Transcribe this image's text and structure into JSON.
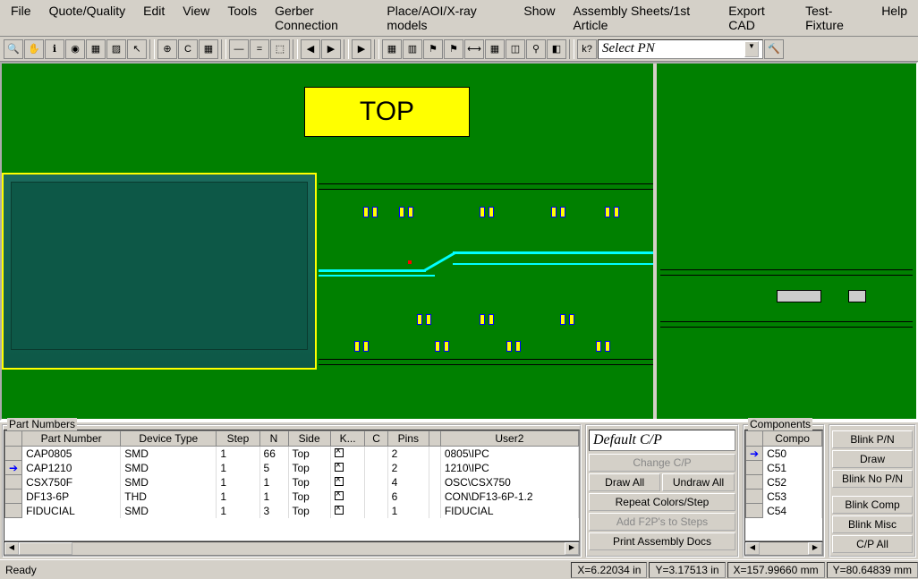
{
  "menu": [
    "File",
    "Quote/Quality",
    "Edit",
    "View",
    "Tools",
    "Gerber Connection",
    "Place/AOI/X-ray models",
    "Show",
    "Assembly Sheets/1st Article",
    "Export CAD",
    "Test-Fixture",
    "Help"
  ],
  "toolbar_icons": [
    "🔍",
    "✋",
    "ℹ",
    "◉",
    "▦",
    "▨",
    "↖",
    "",
    "⊕",
    "C",
    "▦",
    "",
    "—",
    "=",
    "⬚",
    "",
    "◀",
    "▶",
    "",
    "▶",
    "",
    "▦",
    "▥",
    "⚑",
    "⚑",
    "⟷",
    "▦",
    "◫",
    "⚲",
    "◧",
    "",
    "k?"
  ],
  "selectpn": {
    "label": "Select PN"
  },
  "viewport": {
    "top_label": "TOP",
    "top_label_bg": "#ffff00",
    "pcb_bg": "#008000",
    "trace_color": "#00ffff",
    "pad_fill": "#ffff00",
    "pad_border": "#0000ff",
    "photo_border": "#ffff00"
  },
  "pn_panel": {
    "title": "Part Numbers",
    "columns": [
      "",
      "Part Number",
      "Device Type",
      "Step",
      "N",
      "Side",
      "K...",
      "C",
      "Pins",
      "",
      "User2"
    ],
    "rows": [
      {
        "sel": "",
        "pn": "CAP0805",
        "dt": "SMD",
        "step": "1",
        "n": "66",
        "side": "Top",
        "k": true,
        "c": "",
        "pins": "2",
        "g": "",
        "u2": "0805\\IPC"
      },
      {
        "sel": "▶",
        "pn": "CAP1210",
        "dt": "SMD",
        "step": "1",
        "n": "5",
        "side": "Top",
        "k": true,
        "c": "",
        "pins": "2",
        "g": "",
        "u2": "1210\\IPC"
      },
      {
        "sel": "",
        "pn": "CSX750F",
        "dt": "SMD",
        "step": "1",
        "n": "1",
        "side": "Top",
        "k": true,
        "c": "",
        "pins": "4",
        "g": "",
        "u2": "OSC\\CSX750"
      },
      {
        "sel": "",
        "pn": "DF13-6P",
        "dt": "THD",
        "step": "1",
        "n": "1",
        "side": "Top",
        "k": true,
        "c": "",
        "pins": "6",
        "g": "",
        "u2": "CON\\DF13-6P-1.2"
      },
      {
        "sel": "",
        "pn": "FIDUCIAL",
        "dt": "SMD",
        "step": "1",
        "n": "3",
        "side": "Top",
        "k": true,
        "c": "",
        "pins": "1",
        "g": "",
        "u2": "FIDUCIAL"
      }
    ]
  },
  "cp_panel": {
    "title": "Default C/P",
    "buttons": {
      "change": "Change C/P",
      "drawall": "Draw All",
      "undrawall": "Undraw All",
      "repeat": "Repeat Colors/Step",
      "addf2p": "Add F2P's to Steps",
      "print": "Print Assembly Docs"
    }
  },
  "comp_panel": {
    "title": "Components",
    "col": "Compo",
    "rows": [
      {
        "sel": "▶",
        "c": "C50"
      },
      {
        "sel": "",
        "c": "C51"
      },
      {
        "sel": "",
        "c": "C52"
      },
      {
        "sel": "",
        "c": "C53"
      },
      {
        "sel": "",
        "c": "C54"
      }
    ]
  },
  "btns2": [
    "Blink P/N",
    "Draw",
    "Blink No P/N",
    "",
    "Blink Comp",
    "Blink Misc",
    "C/P All"
  ],
  "status": {
    "ready": "Ready",
    "xin": "X=6.22034 in",
    "yin": "Y=3.17513 in",
    "xmm": "X=157.99660 mm",
    "ymm": "Y=80.64839 mm"
  }
}
